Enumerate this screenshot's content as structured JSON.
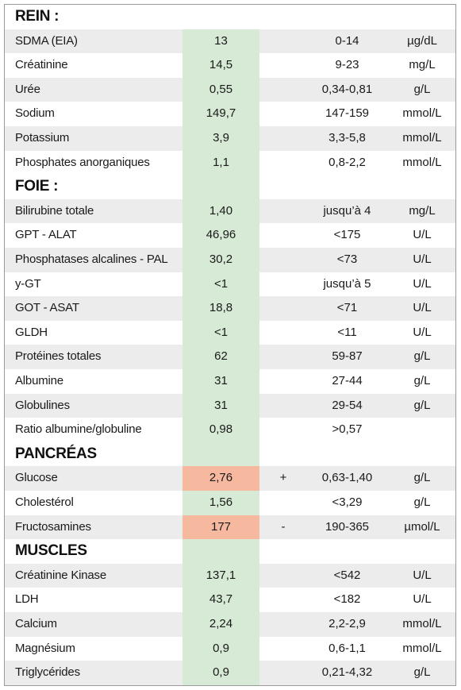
{
  "sections": [
    {
      "title": "REIN :",
      "rows": [
        {
          "name": "SDMA (EIA)",
          "value": "13",
          "flag": "",
          "ref": "0-14",
          "unit": "µg/dL",
          "status": "normal"
        },
        {
          "name": "Créatinine",
          "value": "14,5",
          "flag": "",
          "ref": "9-23",
          "unit": "mg/L",
          "status": "normal"
        },
        {
          "name": "Urée",
          "value": "0,55",
          "flag": "",
          "ref": "0,34-0,81",
          "unit": "g/L",
          "status": "normal"
        },
        {
          "name": "Sodium",
          "value": "149,7",
          "flag": "",
          "ref": "147-159",
          "unit": "mmol/L",
          "status": "normal"
        },
        {
          "name": "Potassium",
          "value": "3,9",
          "flag": "",
          "ref": "3,3-5,8",
          "unit": "mmol/L",
          "status": "normal"
        },
        {
          "name": "Phosphates anorganiques",
          "value": "1,1",
          "flag": "",
          "ref": "0,8-2,2",
          "unit": "mmol/L",
          "status": "normal"
        }
      ]
    },
    {
      "title": "FOIE :",
      "rows": [
        {
          "name": "Bilirubine totale",
          "value": "1,40",
          "flag": "",
          "ref": "jusqu’à 4",
          "unit": "mg/L",
          "status": "normal"
        },
        {
          "name": "GPT - ALAT",
          "value": "46,96",
          "flag": "",
          "ref": "<175",
          "unit": "U/L",
          "status": "normal"
        },
        {
          "name": "Phosphatases alcalines - PAL",
          "value": "30,2",
          "flag": "",
          "ref": "<73",
          "unit": "U/L",
          "status": "normal"
        },
        {
          "name": "y-GT",
          "value": "<1",
          "flag": "",
          "ref": "jusqu’à 5",
          "unit": "U/L",
          "status": "normal"
        },
        {
          "name": "GOT - ASAT",
          "value": "18,8",
          "flag": "",
          "ref": "<71",
          "unit": "U/L",
          "status": "normal"
        },
        {
          "name": "GLDH",
          "value": "<1",
          "flag": "",
          "ref": "<11",
          "unit": "U/L",
          "status": "normal"
        },
        {
          "name": "Protéines totales",
          "value": "62",
          "flag": "",
          "ref": "59-87",
          "unit": "g/L",
          "status": "normal"
        },
        {
          "name": "Albumine",
          "value": "31",
          "flag": "",
          "ref": "27-44",
          "unit": "g/L",
          "status": "normal"
        },
        {
          "name": "Globulines",
          "value": "31",
          "flag": "",
          "ref": "29-54",
          "unit": "g/L",
          "status": "normal"
        },
        {
          "name": "Ratio albumine/globuline",
          "value": "0,98",
          "flag": "",
          "ref": ">0,57",
          "unit": "",
          "status": "normal"
        }
      ]
    },
    {
      "title": "PANCRÉAS",
      "rows": [
        {
          "name": "Glucose",
          "value": "2,76",
          "flag": "+",
          "ref": "0,63-1,40",
          "unit": "g/L",
          "status": "high"
        },
        {
          "name": "Cholestérol",
          "value": "1,56",
          "flag": "",
          "ref": "<3,29",
          "unit": "g/L",
          "status": "normal"
        },
        {
          "name": "Fructosamines",
          "value": "177",
          "flag": "-",
          "ref": "190-365",
          "unit": "µmol/L",
          "status": "low"
        }
      ]
    },
    {
      "title": "MUSCLES",
      "rows": [
        {
          "name": "Créatinine Kinase",
          "value": "137,1",
          "flag": "",
          "ref": "<542",
          "unit": "U/L",
          "status": "normal"
        },
        {
          "name": "LDH",
          "value": "43,7",
          "flag": "",
          "ref": "<182",
          "unit": "U/L",
          "status": "normal"
        },
        {
          "name": "Calcium",
          "value": "2,24",
          "flag": "",
          "ref": "2,2-2,9",
          "unit": "mmol/L",
          "status": "normal"
        },
        {
          "name": "Magnésium",
          "value": "0,9",
          "flag": "",
          "ref": "0,6-1,1",
          "unit": "mmol/L",
          "status": "normal"
        },
        {
          "name": "Triglycérides",
          "value": "0,9",
          "flag": "",
          "ref": "0,21-4,32",
          "unit": "g/L",
          "status": "normal"
        }
      ]
    }
  ],
  "colors": {
    "normal_fill": "#d6ead5",
    "abnormal_fill": "#f7b8a0",
    "stripe": "#ececec"
  }
}
